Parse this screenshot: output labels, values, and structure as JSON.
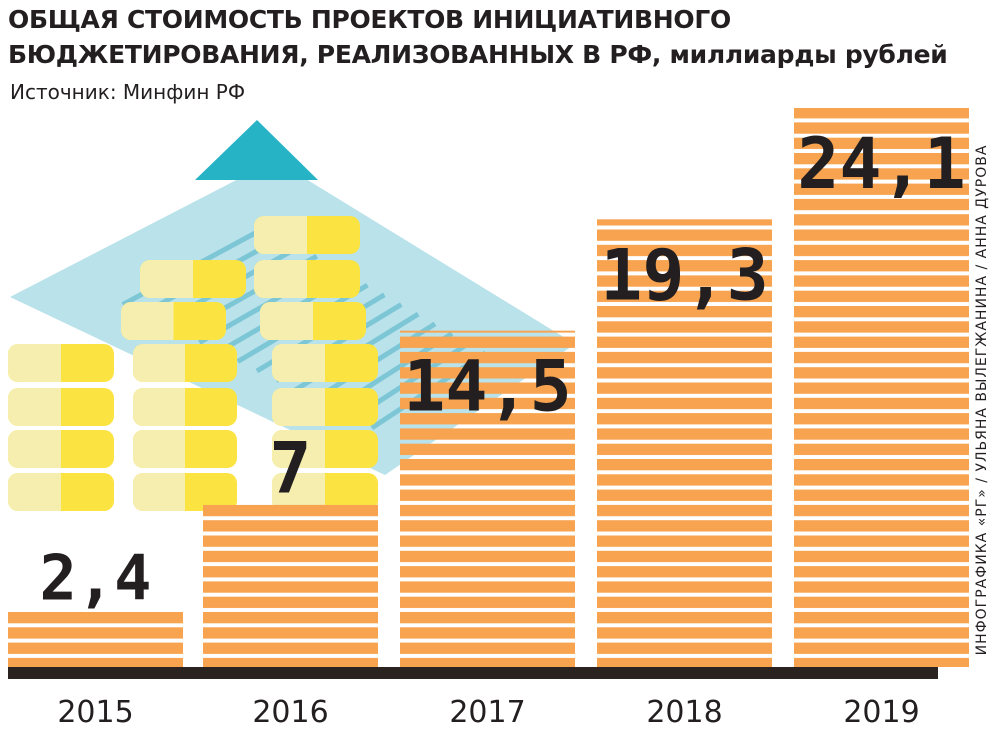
{
  "header": {
    "title_line1": "ОБЩАЯ СТОИМОСТЬ ПРОЕКТОВ ИНИЦИАТИВНОГО",
    "title_line2": "БЮДЖЕТИРОВАНИЯ, РЕАЛИЗОВАННЫХ В РФ,",
    "title_unit": "миллиарды рублей",
    "source": "Источник: Минфин РФ"
  },
  "credit": "ИНФОГРАФИКА «РГ» / УЛЬЯНА ВЫЛЕГЖАНИНА / АННА ДУРОВА",
  "colors": {
    "bar": "#f7a34f",
    "stripe": "#ffffff",
    "baseline": "#2b2320",
    "text": "#231f20",
    "coin_light": "#f5eeae",
    "coin_dark": "#fbe442",
    "paper": "#b9e2ea",
    "paper_lines": "#7cc6d6",
    "paper_fold": "#27b3c6"
  },
  "illustration": {
    "icons": [
      "document-icon",
      "coin-stack-icon"
    ]
  },
  "chart_data": {
    "type": "bar",
    "title": "ОБЩАЯ СТОИМОСТЬ ПРОЕКТОВ ИНИЦИАТИВНОГО БЮДЖЕТИРОВАНИЯ, РЕАЛИЗОВАННЫХ В РФ, миллиарды рублей",
    "categories": [
      "2015",
      "2016",
      "2017",
      "2018",
      "2019"
    ],
    "values": [
      2.4,
      7,
      14.5,
      19.3,
      24.1
    ],
    "value_labels": [
      "2,4",
      "7",
      "14,5",
      "19,3",
      "24,1"
    ],
    "xlabel": "",
    "ylabel": "",
    "ylim": [
      0,
      26
    ],
    "grid": false,
    "legend": "none"
  }
}
